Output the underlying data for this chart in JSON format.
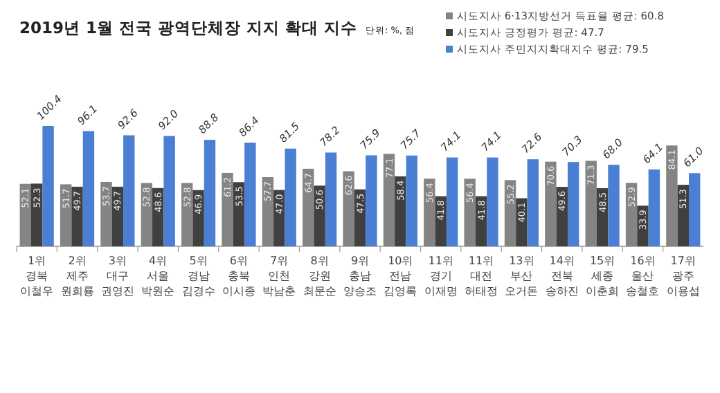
{
  "chart_data": {
    "type": "bar",
    "title": "2019년 1월 전국 광역단체장 지지 확대 지수",
    "subtitle": "단위: %, 점",
    "categories": [
      "1위 경북 이철우",
      "2위 제주 원희룡",
      "3위 대구 권영진",
      "4위 서울 박원순",
      "5위 경남 김경수",
      "6위 충북 이시종",
      "7위 인천 박남춘",
      "8위 강원 최문순",
      "9위 충남 양승조",
      "10위 전남 김영록",
      "11위 경기 이재명",
      "11위 대전 허태정",
      "13위 부산 오거돈",
      "14위 전북 송하진",
      "15위 세종 이춘희",
      "16위 울산 송철호",
      "17위 광주 이용섭"
    ],
    "series": [
      {
        "name": "시도지사 6·13지방선거 득표율 평균: 60.8",
        "color": "#848484",
        "values": [
          52.1,
          51.7,
          53.7,
          52.8,
          52.8,
          61.2,
          57.7,
          64.7,
          62.6,
          77.1,
          56.4,
          56.4,
          55.2,
          70.6,
          71.3,
          52.9,
          84.1
        ],
        "value_labels": [
          "52.1",
          "51.7",
          "53.7",
          "52.8",
          "52.8",
          "61.2",
          "57.7",
          "64.7",
          "62.6",
          "77.1",
          "56.4",
          "56.4",
          "55.2",
          "70.6",
          "71.3",
          "52.9",
          "84.1"
        ]
      },
      {
        "name": "시도지사 긍정평가 평균: 47.7",
        "color": "#404040",
        "values": [
          52.3,
          49.7,
          49.7,
          48.6,
          46.9,
          53.5,
          47.0,
          50.6,
          47.5,
          58.4,
          41.8,
          41.8,
          40.1,
          49.6,
          48.5,
          33.9,
          51.3
        ],
        "value_labels": [
          "52.3",
          "49.7",
          "49.7",
          "48.6",
          "46.9",
          "53.5",
          "47.0",
          "50.6",
          "47.5",
          "58.4",
          "41.8",
          "41.8",
          "40.1",
          "49.6",
          "48.5",
          "33.9",
          "51.3"
        ]
      },
      {
        "name": "시도지사 주민지지확대지수 평균: 79.5",
        "color": "#4a7fd4",
        "values": [
          100.4,
          96.1,
          92.6,
          92.0,
          88.8,
          86.4,
          81.5,
          78.2,
          75.9,
          75.7,
          74.1,
          74.1,
          72.6,
          70.3,
          68.0,
          64.1,
          61.0
        ],
        "value_labels": [
          "100.4",
          "96.1",
          "92.6",
          "92.0",
          "88.8",
          "86.4",
          "81.5",
          "78.2",
          "75.9",
          "75.7",
          "74.1",
          "74.1",
          "72.6",
          "70.3",
          "68.0",
          "64.1",
          "61.0"
        ]
      }
    ],
    "legend": "top right"
  }
}
